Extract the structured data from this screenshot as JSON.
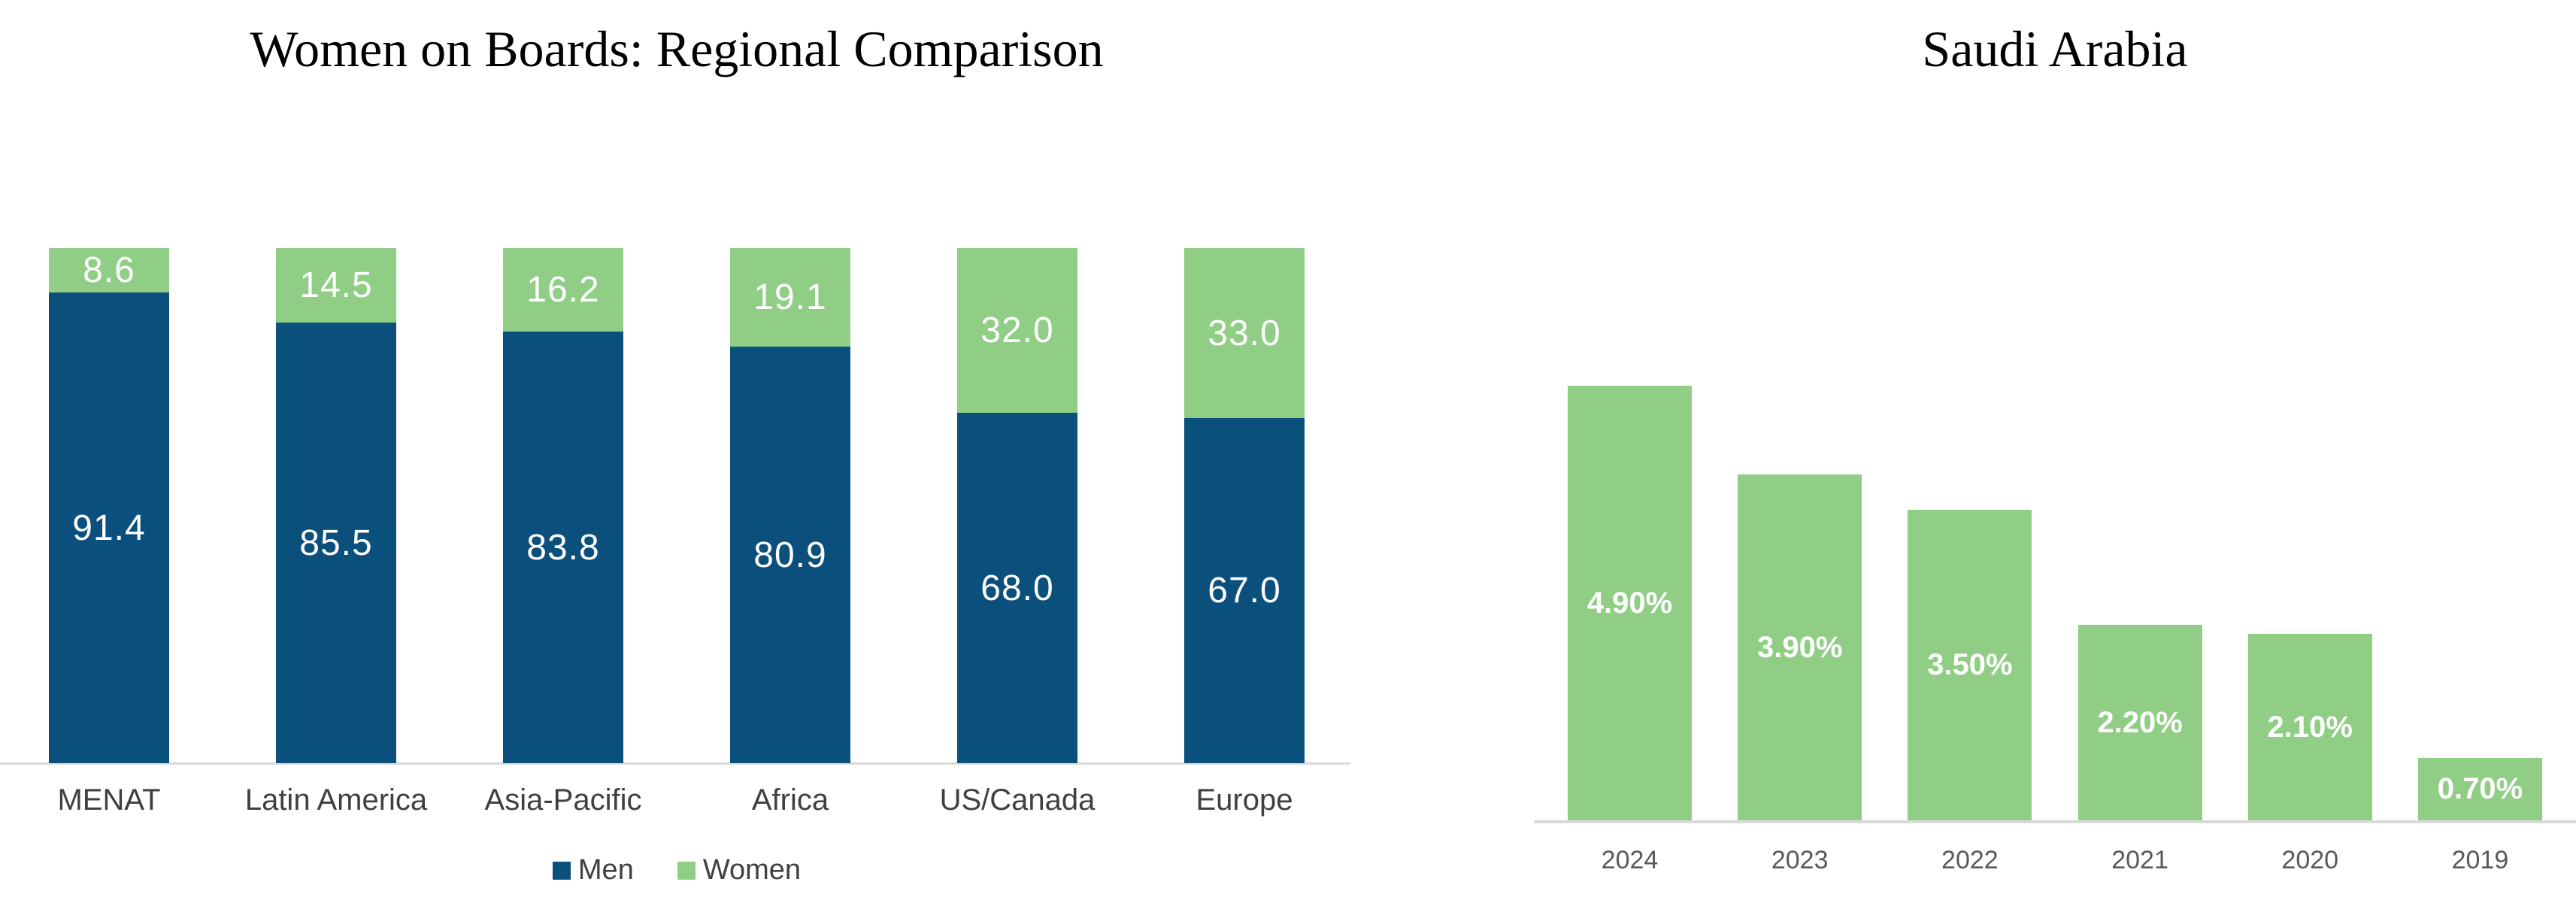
{
  "page": {
    "background": "#FFFFFF"
  },
  "chart_data": [
    {
      "type": "bar",
      "variant": "stacked-100-percent-column",
      "title": "Women on Boards: Regional Comparison",
      "categories": [
        "MENAT",
        "Latin America",
        "Asia-Pacific",
        "Africa",
        "US/Canada",
        "Europe"
      ],
      "series": [
        {
          "name": "Men",
          "color": "#0B4F7C",
          "values": [
            91.4,
            85.5,
            83.8,
            80.9,
            68.0,
            67.0
          ],
          "labels": [
            "91.4",
            "85.5",
            "83.8",
            "80.9",
            "68.0",
            "67.0"
          ]
        },
        {
          "name": "Women",
          "color": "#90CE85",
          "values": [
            8.6,
            14.5,
            16.2,
            19.1,
            32.0,
            33.0
          ],
          "labels": [
            "8.6",
            "14.5",
            "16.2",
            "19.1",
            "32.0",
            "33.0"
          ]
        }
      ],
      "stack_order_top_to_bottom": [
        "Women",
        "Men"
      ],
      "ylim": [
        0,
        100
      ],
      "grid": false,
      "y_axis_visible": false,
      "legend_position": "bottom",
      "value_label_color": "#FFFFFF",
      "axis_line_color": "#D9D9D9",
      "category_label_color": "#3F3F3F",
      "legend_text_color": "#404040"
    },
    {
      "type": "bar",
      "variant": "column",
      "title": "Saudi Arabia",
      "categories": [
        "2024",
        "2023",
        "2022",
        "2021",
        "2020",
        "2019"
      ],
      "values": [
        4.9,
        3.9,
        3.5,
        2.2,
        2.1,
        0.7
      ],
      "labels": [
        "4.90%",
        "3.90%",
        "3.50%",
        "2.20%",
        "2.10%",
        "0.70%"
      ],
      "bar_color": "#90CE85",
      "ylim": [
        0,
        4.9
      ],
      "grid": false,
      "y_axis_visible": false,
      "legend_position": "none",
      "value_label_color": "#FFFFFF",
      "axis_line_color": "#D9D9D9",
      "category_label_color": "#595959"
    }
  ]
}
